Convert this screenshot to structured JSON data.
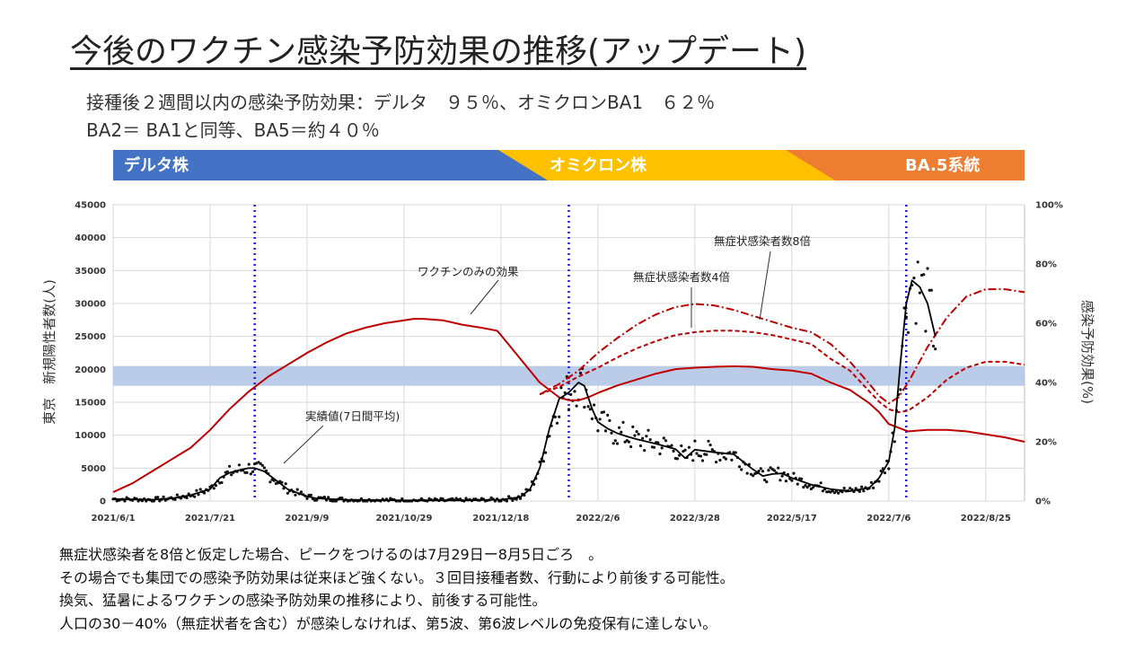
{
  "title": "今後のワクチン感染予防効果の推移(アップデート)",
  "subtitle_line1": "接種後２週間以内の感染予防効果：デルタ　９５％、オミクロンBA1　６２％",
  "subtitle_line2": "BA2＝ BA1と同等、BA5＝約４０％",
  "banner": [
    {
      "label": "デルタ株",
      "color": "#4472C4"
    },
    {
      "label": "オミクロン株",
      "color": "#FFC000"
    },
    {
      "label": "BA.5系統",
      "color": "#ED7D31"
    }
  ],
  "notes": [
    "無症状感染者を8倍と仮定した場合、ピークをつけるのは7月29日ー8月5日ごろ　。",
    "その場合でも集団での感染予防効果は従来ほど強くない。３回目接種者数、行動により前後する可能性。",
    "換気、猛暑によるワクチンの感染予防効果の推移により、前後する可能性。",
    "人口の30－40%（無症状者を含む）が感染しなければ、第5波、第6波レベルの免疫保有に達しない。"
  ],
  "chart_data": {
    "type": "line",
    "x_tick_labels": [
      "2021/6/1",
      "2021/7/21",
      "2021/9/9",
      "2021/10/29",
      "2021/12/18",
      "2022/2/6",
      "2022/3/28",
      "2022/5/17",
      "2022/7/6",
      "2022/8/25"
    ],
    "x_tick_days": [
      0,
      50,
      100,
      150,
      200,
      250,
      300,
      350,
      400,
      450
    ],
    "x_range_days": [
      0,
      470
    ],
    "y_left_label": "東京　新規陽性者数(人)",
    "y_left_range": [
      0,
      45000
    ],
    "y_left_ticks": [
      "0",
      "5000",
      "10000",
      "15000",
      "20000",
      "25000",
      "30000",
      "35000",
      "40000",
      "45000"
    ],
    "y_right_label": "感染予防効果(%)",
    "y_right_range": [
      0,
      100
    ],
    "y_right_ticks": [
      "0%",
      "20%",
      "40%",
      "60%",
      "80%",
      "100%"
    ],
    "shaded_band_cases": [
      17500,
      20500
    ],
    "vertical_lines_days": [
      73,
      235,
      409
    ],
    "series": [
      {
        "name": "ワクチンのみの効果",
        "axis": "right",
        "color": "#C00000",
        "style": "solid",
        "x": [
          0,
          10,
          20,
          30,
          40,
          50,
          60,
          70,
          80,
          90,
          100,
          110,
          120,
          130,
          140,
          150,
          155,
          160,
          170,
          180,
          190,
          198,
          200,
          210,
          220,
          230,
          235,
          240,
          245,
          250,
          260,
          270,
          280,
          290,
          300,
          310,
          320,
          330,
          340,
          350,
          360,
          370,
          380,
          390,
          395,
          400,
          410,
          420,
          430,
          440,
          450,
          460,
          470
        ],
        "y": [
          3,
          6,
          10,
          14,
          18,
          24,
          31,
          37,
          42,
          46,
          50,
          53.5,
          56.5,
          58.5,
          60,
          61,
          61.5,
          61.5,
          61,
          59.5,
          58.5,
          57.5,
          56,
          48,
          40,
          35,
          34,
          34,
          35,
          36.5,
          39,
          41,
          43,
          44.5,
          45,
          45.3,
          45.5,
          45.3,
          44.5,
          44,
          43,
          40,
          37.5,
          33,
          30,
          26,
          23.5,
          24,
          24,
          23.5,
          22.5,
          21.5,
          20
        ],
        "name_label": "ワクチンのみの効果"
      },
      {
        "name": "無症状感染者数4倍",
        "axis": "right",
        "color": "#C00000",
        "style": "dashed",
        "x": [
          220,
          230,
          240,
          250,
          260,
          270,
          280,
          290,
          300,
          310,
          320,
          330,
          340,
          350,
          360,
          370,
          380,
          390,
          395,
          400,
          405,
          410,
          420,
          430,
          440,
          450,
          460,
          470
        ],
        "y": [
          36,
          38.5,
          42,
          45,
          48.5,
          51.5,
          54,
          56,
          57,
          57.5,
          57.5,
          57,
          56,
          54.5,
          53,
          48,
          44,
          37,
          33.5,
          31,
          30,
          30.5,
          35,
          41,
          45,
          47,
          47,
          46
        ]
      },
      {
        "name": "無症状感染者数8倍",
        "axis": "right",
        "color": "#C00000",
        "style": "dashdot",
        "x": [
          220,
          230,
          240,
          250,
          260,
          270,
          280,
          290,
          300,
          310,
          320,
          330,
          340,
          350,
          360,
          370,
          380,
          390,
          395,
          400,
          405,
          410,
          420,
          430,
          440,
          450,
          460,
          470
        ],
        "y": [
          36,
          39.5,
          44,
          50,
          55,
          59.5,
          63,
          65.5,
          66.5,
          66,
          64.5,
          62.5,
          60.5,
          58.5,
          57,
          53,
          47,
          39.5,
          35.5,
          33,
          35,
          40,
          52,
          62,
          69,
          71.5,
          71.5,
          70.5
        ]
      },
      {
        "name": "実績値(7日間平均)",
        "axis": "left",
        "color": "#000000",
        "style": "solid",
        "x": [
          0,
          20,
          30,
          40,
          50,
          55,
          60,
          65,
          70,
          73,
          78,
          82,
          90,
          100,
          105,
          120,
          150,
          180,
          200,
          210,
          215,
          220,
          225,
          230,
          235,
          240,
          243,
          247,
          250,
          255,
          260,
          265,
          270,
          280,
          290,
          295,
          300,
          310,
          320,
          330,
          335,
          340,
          345,
          350,
          360,
          370,
          380,
          390,
          395,
          400,
          403,
          406,
          409,
          412,
          416,
          420,
          424
        ],
        "y": [
          300,
          200,
          400,
          900,
          1800,
          3500,
          4300,
          4700,
          5000,
          5000,
          4500,
          3600,
          1800,
          700,
          400,
          200,
          100,
          100,
          200,
          600,
          1800,
          5000,
          11000,
          15500,
          16500,
          18000,
          17500,
          14000,
          12000,
          11000,
          10300,
          9800,
          9400,
          8700,
          7900,
          6500,
          7800,
          7400,
          7100,
          4800,
          3800,
          4100,
          4200,
          3500,
          2500,
          1800,
          1500,
          2000,
          3500,
          6000,
          11000,
          21000,
          30000,
          33500,
          32500,
          30000,
          25000
        ]
      }
    ],
    "scatter_note": "実績値",
    "annotations": [
      "ワクチンのみの効果",
      "無症状感染者数4倍",
      "無症状感染者数8倍",
      "実績値(7日間平均)"
    ]
  }
}
